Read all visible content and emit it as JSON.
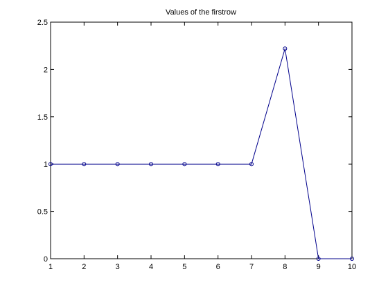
{
  "chart_data": {
    "type": "line",
    "title": "Values of the firstrow",
    "xlabel": "",
    "ylabel": "",
    "xlim": [
      1,
      10
    ],
    "ylim": [
      0,
      2.5
    ],
    "x_ticks": [
      1,
      2,
      3,
      4,
      5,
      6,
      7,
      8,
      9,
      10
    ],
    "x_tick_labels": [
      "1",
      "2",
      "3",
      "4",
      "5",
      "6",
      "7",
      "8",
      "9",
      "10"
    ],
    "y_ticks": [
      0,
      0.5,
      1,
      1.5,
      2,
      2.5
    ],
    "y_tick_labels": [
      "0",
      "0.5",
      "1",
      "1.5",
      "2",
      "2.5"
    ],
    "grid": false,
    "legend": "none",
    "line_color": "#00008b",
    "marker": "circle",
    "series": [
      {
        "x": [
          1,
          2,
          3,
          4,
          5,
          6,
          7,
          8,
          9,
          10
        ],
        "values": [
          1,
          1,
          1,
          1,
          1,
          1,
          1,
          2.22,
          0,
          0
        ]
      }
    ]
  }
}
